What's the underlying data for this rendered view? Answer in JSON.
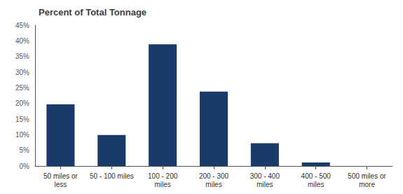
{
  "chart_data": {
    "type": "bar",
    "title": "Percent of Total Tonnage",
    "categories": [
      "50 miles or\nless",
      "50 - 100 miles",
      "100 - 200\nmiles",
      "200 - 300\nmiles",
      "300 - 400\nmiles",
      "400 - 500\nmiles",
      "500 miles or\nmore"
    ],
    "values": [
      19.7,
      9.9,
      38.9,
      23.8,
      7.3,
      1.1,
      0.0
    ],
    "color": "#1a3a6b",
    "ylim": [
      0,
      45
    ],
    "yticks": [
      {
        "value": 0,
        "label": "0%"
      },
      {
        "value": 5,
        "label": "5%"
      },
      {
        "value": 10,
        "label": "10%"
      },
      {
        "value": 15,
        "label": "15%"
      },
      {
        "value": 20,
        "label": "20%"
      },
      {
        "value": 25,
        "label": "25%"
      },
      {
        "value": 30,
        "label": "30%"
      },
      {
        "value": 35,
        "label": "35%"
      },
      {
        "value": 40,
        "label": "40%"
      },
      {
        "value": 45,
        "label": "45%"
      }
    ],
    "grid": false
  }
}
